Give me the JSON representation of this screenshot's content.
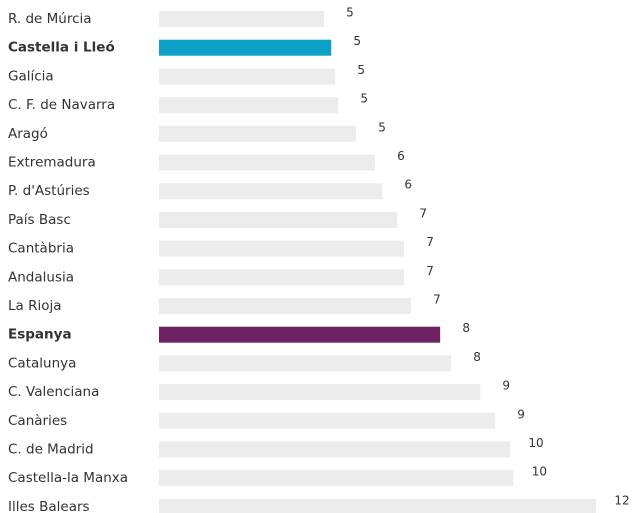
{
  "chart_data": {
    "type": "barh",
    "categories": [
      "R. de Múrcia",
      "Castella i Lleó",
      "Galícia",
      "C. F. de Navarra",
      "Aragó",
      "Extremadura",
      "P. d'Astúries",
      "País Basc",
      "Cantàbria",
      "Andalusia",
      "La Rioja",
      "Espanya",
      "Catalunya",
      "C. Valenciana",
      "Canàries",
      "C. de Madrid",
      "Castella-la Manxa",
      "Illes Balears"
    ],
    "values": [
      4.53,
      4.73,
      4.84,
      4.92,
      5.41,
      5.93,
      6.13,
      6.54,
      6.73,
      6.73,
      6.92,
      7.72,
      8.02,
      8.82,
      9.23,
      9.64,
      9.73,
      12.0
    ],
    "value_labels": [
      "5",
      "5",
      "5",
      "5",
      "5",
      "6",
      "6",
      "7",
      "7",
      "7",
      "7",
      "8",
      "8",
      "9",
      "9",
      "10",
      "10",
      "12"
    ],
    "color": "#ececec",
    "colors": [
      "#ececec",
      "#0aa0c8",
      "#ececec",
      "#ececec",
      "#ececec",
      "#ececec",
      "#ececec",
      "#ececec",
      "#ececec",
      "#ececec",
      "#ececec",
      "#6e2263",
      "#ececec",
      "#ececec",
      "#ececec",
      "#ececec",
      "#ececec",
      "#ececec"
    ],
    "xlim": [
      0,
      12
    ]
  }
}
